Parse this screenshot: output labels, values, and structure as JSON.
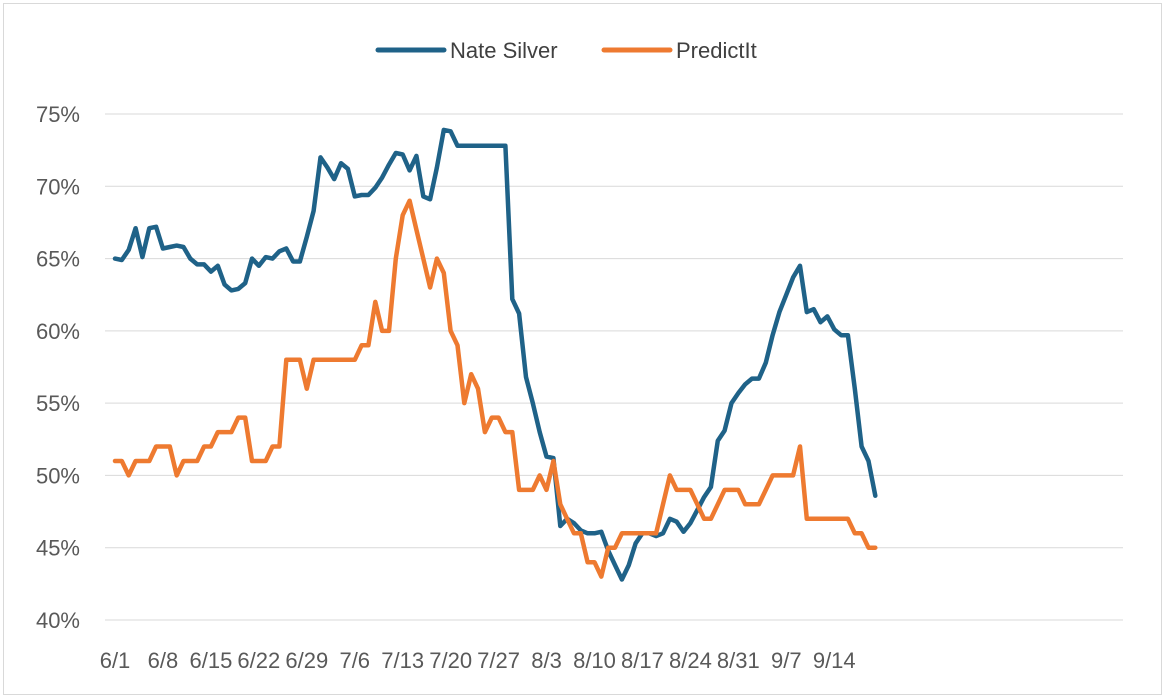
{
  "chart_data": {
    "type": "line",
    "title": "",
    "xlabel": "",
    "ylabel": "",
    "ylim": [
      0.4,
      0.75
    ],
    "y_ticks": [
      0.4,
      0.45,
      0.5,
      0.55,
      0.6,
      0.65,
      0.7,
      0.75
    ],
    "y_tick_labels": [
      "40%",
      "45%",
      "50%",
      "55%",
      "60%",
      "65%",
      "70%",
      "75%"
    ],
    "x_start": "6/1",
    "x_tick_labels": [
      "6/1",
      "6/8",
      "6/15",
      "6/22",
      "6/29",
      "7/6",
      "7/13",
      "7/20",
      "7/27",
      "8/3",
      "8/10",
      "8/17",
      "8/24",
      "8/31",
      "9/7",
      "9/14"
    ],
    "grid": "horizontal",
    "legend_position": "top",
    "series": [
      {
        "name": "Nate Silver",
        "color": "#1f6288",
        "points": [
          [
            "6/1",
            0.65
          ],
          [
            "6/2",
            0.649
          ],
          [
            "6/3",
            0.656
          ],
          [
            "6/4",
            0.671
          ],
          [
            "6/5",
            0.651
          ],
          [
            "6/6",
            0.671
          ],
          [
            "6/7",
            0.672
          ],
          [
            "6/8",
            0.657
          ],
          [
            "6/9",
            0.658
          ],
          [
            "6/10",
            0.659
          ],
          [
            "6/11",
            0.658
          ],
          [
            "6/12",
            0.65
          ],
          [
            "6/13",
            0.646
          ],
          [
            "6/14",
            0.646
          ],
          [
            "6/15",
            0.641
          ],
          [
            "6/16",
            0.645
          ],
          [
            "6/17",
            0.632
          ],
          [
            "6/18",
            0.628
          ],
          [
            "6/19",
            0.629
          ],
          [
            "6/20",
            0.633
          ],
          [
            "6/21",
            0.65
          ],
          [
            "6/22",
            0.645
          ],
          [
            "6/23",
            0.651
          ],
          [
            "6/24",
            0.65
          ],
          [
            "6/25",
            0.655
          ],
          [
            "6/26",
            0.657
          ],
          [
            "6/27",
            0.648
          ],
          [
            "6/28",
            0.648
          ],
          [
            "6/29",
            0.665
          ],
          [
            "6/30",
            0.683
          ],
          [
            "7/1",
            0.72
          ],
          [
            "7/2",
            0.713
          ],
          [
            "7/3",
            0.705
          ],
          [
            "7/4",
            0.716
          ],
          [
            "7/5",
            0.712
          ],
          [
            "7/6",
            0.693
          ],
          [
            "7/7",
            0.694
          ],
          [
            "7/8",
            0.694
          ],
          [
            "7/9",
            0.699
          ],
          [
            "7/10",
            0.706
          ],
          [
            "7/11",
            0.715
          ],
          [
            "7/12",
            0.723
          ],
          [
            "7/13",
            0.722
          ],
          [
            "7/14",
            0.711
          ],
          [
            "7/15",
            0.721
          ],
          [
            "7/16",
            0.693
          ],
          [
            "7/17",
            0.691
          ],
          [
            "7/18",
            0.713
          ],
          [
            "7/19",
            0.739
          ],
          [
            "7/20",
            0.738
          ],
          [
            "7/21",
            0.728
          ],
          [
            "7/22",
            0.728
          ],
          [
            "7/23",
            0.728
          ],
          [
            "7/24",
            0.728
          ],
          [
            "7/25",
            0.728
          ],
          [
            "7/26",
            0.728
          ],
          [
            "7/27",
            0.728
          ],
          [
            "7/28",
            0.728
          ],
          [
            "7/29",
            0.622
          ],
          [
            "7/30",
            0.612
          ],
          [
            "7/31",
            0.568
          ],
          [
            "8/1",
            0.55
          ],
          [
            "8/2",
            0.53
          ],
          [
            "8/3",
            0.513
          ],
          [
            "8/4",
            0.512
          ],
          [
            "8/5",
            0.465
          ],
          [
            "8/6",
            0.47
          ],
          [
            "8/7",
            0.467
          ],
          [
            "8/8",
            0.462
          ],
          [
            "8/9",
            0.46
          ],
          [
            "8/10",
            0.46
          ],
          [
            "8/11",
            0.461
          ],
          [
            "8/12",
            0.448
          ],
          [
            "8/13",
            0.438
          ],
          [
            "8/14",
            0.428
          ],
          [
            "8/15",
            0.438
          ],
          [
            "8/16",
            0.453
          ],
          [
            "8/17",
            0.46
          ],
          [
            "8/18",
            0.46
          ],
          [
            "8/19",
            0.458
          ],
          [
            "8/20",
            0.46
          ],
          [
            "8/21",
            0.47
          ],
          [
            "8/22",
            0.468
          ],
          [
            "8/23",
            0.461
          ],
          [
            "8/24",
            0.467
          ],
          [
            "8/25",
            0.476
          ],
          [
            "8/26",
            0.485
          ],
          [
            "8/27",
            0.492
          ],
          [
            "8/28",
            0.524
          ],
          [
            "8/29",
            0.531
          ],
          [
            "8/30",
            0.55
          ],
          [
            "8/31",
            0.557
          ],
          [
            "9/1",
            0.563
          ],
          [
            "9/2",
            0.567
          ],
          [
            "9/3",
            0.567
          ],
          [
            "9/4",
            0.578
          ],
          [
            "9/5",
            0.597
          ],
          [
            "9/6",
            0.613
          ],
          [
            "9/7",
            0.625
          ],
          [
            "9/8",
            0.637
          ],
          [
            "9/9",
            0.645
          ],
          [
            "9/10",
            0.613
          ],
          [
            "9/11",
            0.615
          ],
          [
            "9/12",
            0.606
          ],
          [
            "9/13",
            0.61
          ],
          [
            "9/14",
            0.601
          ],
          [
            "9/15",
            0.597
          ],
          [
            "9/16",
            0.597
          ],
          [
            "9/17",
            0.56
          ],
          [
            "9/18",
            0.52
          ],
          [
            "9/19",
            0.51
          ],
          [
            "9/20",
            0.486
          ]
        ]
      },
      {
        "name": "PredictIt",
        "color": "#ee7a30",
        "points": [
          [
            "6/1",
            0.51
          ],
          [
            "6/2",
            0.51
          ],
          [
            "6/3",
            0.5
          ],
          [
            "6/4",
            0.51
          ],
          [
            "6/5",
            0.51
          ],
          [
            "6/6",
            0.51
          ],
          [
            "6/7",
            0.52
          ],
          [
            "6/8",
            0.52
          ],
          [
            "6/9",
            0.52
          ],
          [
            "6/10",
            0.5
          ],
          [
            "6/11",
            0.51
          ],
          [
            "6/12",
            0.51
          ],
          [
            "6/13",
            0.51
          ],
          [
            "6/14",
            0.52
          ],
          [
            "6/15",
            0.52
          ],
          [
            "6/16",
            0.53
          ],
          [
            "6/17",
            0.53
          ],
          [
            "6/18",
            0.53
          ],
          [
            "6/19",
            0.54
          ],
          [
            "6/20",
            0.54
          ],
          [
            "6/21",
            0.51
          ],
          [
            "6/22",
            0.51
          ],
          [
            "6/23",
            0.51
          ],
          [
            "6/24",
            0.52
          ],
          [
            "6/25",
            0.52
          ],
          [
            "6/26",
            0.58
          ],
          [
            "6/27",
            0.58
          ],
          [
            "6/28",
            0.58
          ],
          [
            "6/29",
            0.56
          ],
          [
            "6/30",
            0.58
          ],
          [
            "7/1",
            0.58
          ],
          [
            "7/2",
            0.58
          ],
          [
            "7/3",
            0.58
          ],
          [
            "7/4",
            0.58
          ],
          [
            "7/5",
            0.58
          ],
          [
            "7/6",
            0.58
          ],
          [
            "7/7",
            0.59
          ],
          [
            "7/8",
            0.59
          ],
          [
            "7/9",
            0.62
          ],
          [
            "7/10",
            0.6
          ],
          [
            "7/11",
            0.6
          ],
          [
            "7/12",
            0.65
          ],
          [
            "7/13",
            0.68
          ],
          [
            "7/14",
            0.69
          ],
          [
            "7/15",
            0.67
          ],
          [
            "7/16",
            0.65
          ],
          [
            "7/17",
            0.63
          ],
          [
            "7/18",
            0.65
          ],
          [
            "7/19",
            0.64
          ],
          [
            "7/20",
            0.6
          ],
          [
            "7/21",
            0.59
          ],
          [
            "7/22",
            0.55
          ],
          [
            "7/23",
            0.57
          ],
          [
            "7/24",
            0.56
          ],
          [
            "7/25",
            0.53
          ],
          [
            "7/26",
            0.54
          ],
          [
            "7/27",
            0.54
          ],
          [
            "7/28",
            0.53
          ],
          [
            "7/29",
            0.53
          ],
          [
            "7/30",
            0.49
          ],
          [
            "7/31",
            0.49
          ],
          [
            "8/1",
            0.49
          ],
          [
            "8/2",
            0.5
          ],
          [
            "8/3",
            0.49
          ],
          [
            "8/4",
            0.51
          ],
          [
            "8/5",
            0.48
          ],
          [
            "8/6",
            0.47
          ],
          [
            "8/7",
            0.46
          ],
          [
            "8/8",
            0.46
          ],
          [
            "8/9",
            0.44
          ],
          [
            "8/10",
            0.44
          ],
          [
            "8/11",
            0.43
          ],
          [
            "8/12",
            0.45
          ],
          [
            "8/13",
            0.45
          ],
          [
            "8/14",
            0.46
          ],
          [
            "8/15",
            0.46
          ],
          [
            "8/16",
            0.46
          ],
          [
            "8/17",
            0.46
          ],
          [
            "8/18",
            0.46
          ],
          [
            "8/19",
            0.46
          ],
          [
            "8/20",
            0.48
          ],
          [
            "8/21",
            0.5
          ],
          [
            "8/22",
            0.49
          ],
          [
            "8/23",
            0.49
          ],
          [
            "8/24",
            0.49
          ],
          [
            "8/25",
            0.48
          ],
          [
            "8/26",
            0.47
          ],
          [
            "8/27",
            0.47
          ],
          [
            "8/28",
            0.48
          ],
          [
            "8/29",
            0.49
          ],
          [
            "8/30",
            0.49
          ],
          [
            "8/31",
            0.49
          ],
          [
            "9/1",
            0.48
          ],
          [
            "9/2",
            0.48
          ],
          [
            "9/3",
            0.48
          ],
          [
            "9/4",
            0.49
          ],
          [
            "9/5",
            0.5
          ],
          [
            "9/6",
            0.5
          ],
          [
            "9/7",
            0.5
          ],
          [
            "9/8",
            0.5
          ],
          [
            "9/9",
            0.52
          ],
          [
            "9/10",
            0.47
          ],
          [
            "9/11",
            0.47
          ],
          [
            "9/12",
            0.47
          ],
          [
            "9/13",
            0.47
          ],
          [
            "9/14",
            0.47
          ],
          [
            "9/15",
            0.47
          ],
          [
            "9/16",
            0.47
          ],
          [
            "9/17",
            0.46
          ],
          [
            "9/18",
            0.46
          ],
          [
            "9/19",
            0.45
          ],
          [
            "9/20",
            0.45
          ]
        ]
      }
    ]
  }
}
